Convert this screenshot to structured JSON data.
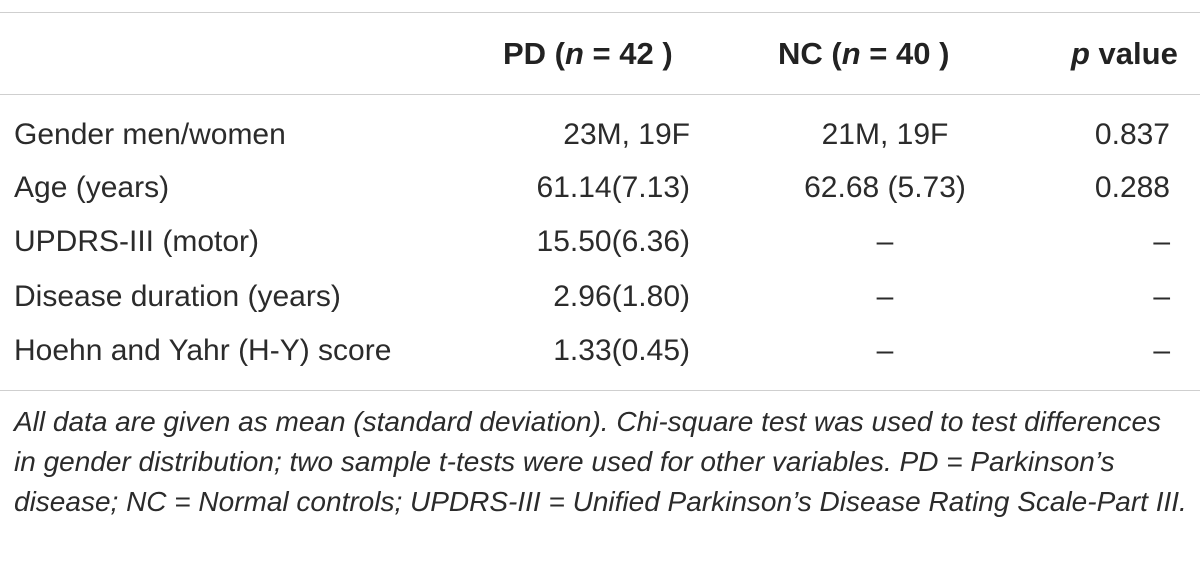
{
  "header": {
    "pd_prefix": "PD (",
    "pd_n": "n",
    "pd_suffix": " = 42 )",
    "nc_prefix": "NC (",
    "nc_n": "n",
    "nc_suffix": " = 40 )",
    "p_italic": "p",
    "p_rest": " value"
  },
  "rows": [
    {
      "label": "Gender men/women",
      "pd": "23M, 19F",
      "nc": "21M, 19F",
      "p": "0.837"
    },
    {
      "label": "Age (years)",
      "pd": "61.14(7.13)",
      "nc": "62.68 (5.73)",
      "p": "0.288"
    },
    {
      "label": "UPDRS-III (motor)",
      "pd": "15.50(6.36)",
      "nc": "–",
      "p": "–"
    },
    {
      "label": "Disease duration (years)",
      "pd": "2.96(1.80)",
      "nc": "–",
      "p": "–"
    },
    {
      "label": "Hoehn and Yahr (H-Y) score",
      "pd": "1.33(0.45)",
      "nc": "–",
      "p": "–"
    }
  ],
  "footnote": "All data are given as mean (standard deviation). Chi-square test was used to test differences in gender distribution; two sample t-tests were used for other variables. PD = Parkinson’s disease; NC = Normal controls; UPDRS-III = Unified Parkinson’s Disease Rating Scale-Part III."
}
